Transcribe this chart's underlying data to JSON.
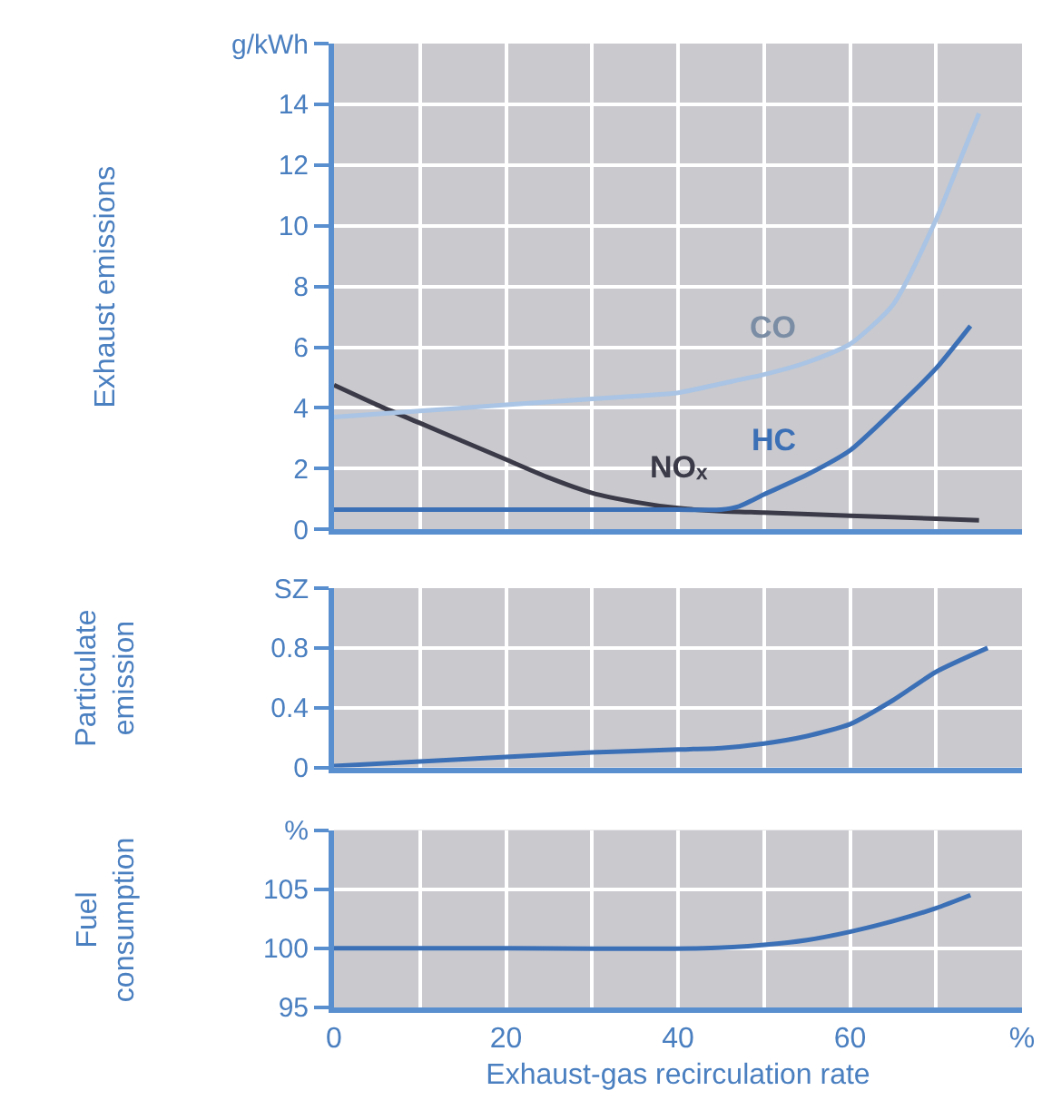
{
  "chart_data": [
    {
      "type": "line",
      "ylabel": "Exhaust emissions",
      "xlim": [
        0,
        80
      ],
      "ylim": [
        0,
        16
      ],
      "xticks": [
        0,
        {
          "value": 10,
          "label": null
        },
        20,
        {
          "value": 30,
          "label": null
        },
        40,
        {
          "value": 50,
          "label": null
        },
        60,
        {
          "value": 70,
          "label": null
        },
        {
          "value": 80,
          "label": null
        }
      ],
      "yticks": [
        0,
        2,
        4,
        6,
        8,
        10,
        12,
        14,
        {
          "value": 16,
          "label": "g/kWh"
        }
      ],
      "grid": true,
      "tick_labels": "y",
      "marker": "none",
      "line_style": "solid",
      "series": [
        {
          "name": "NOₓ",
          "color": "#3a3a48",
          "x": [
            0,
            5,
            10,
            15,
            20,
            25,
            30,
            35,
            40,
            45,
            50,
            60,
            70,
            75
          ],
          "values": [
            4.75,
            4.1,
            3.5,
            2.9,
            2.3,
            1.7,
            1.2,
            0.9,
            0.7,
            0.6,
            0.55,
            0.45,
            0.35,
            0.3
          ]
        },
        {
          "name": "CO",
          "color": "#a9c4e4",
          "x": [
            0,
            10,
            20,
            30,
            40,
            45,
            50,
            55,
            60,
            65,
            70,
            73,
            75
          ],
          "values": [
            3.7,
            3.9,
            4.1,
            4.3,
            4.5,
            4.8,
            5.1,
            5.5,
            6.1,
            7.4,
            10.2,
            12.3,
            13.7
          ]
        },
        {
          "name": "HC",
          "color": "#3b6fb6",
          "x": [
            0,
            20,
            40,
            45,
            47,
            50,
            55,
            60,
            65,
            70,
            74
          ],
          "values": [
            0.65,
            0.65,
            0.65,
            0.65,
            0.75,
            1.15,
            1.8,
            2.6,
            3.9,
            5.3,
            6.7
          ]
        }
      ]
    },
    {
      "type": "line",
      "ylabel": "Particulate\nemission",
      "xlim": [
        0,
        80
      ],
      "ylim": [
        0,
        1.2
      ],
      "xticks": [
        0,
        {
          "value": 10,
          "label": null
        },
        20,
        {
          "value": 30,
          "label": null
        },
        40,
        {
          "value": 50,
          "label": null
        },
        60,
        {
          "value": 70,
          "label": null
        },
        {
          "value": 80,
          "label": null
        }
      ],
      "yticks": [
        0,
        0.4,
        0.8,
        {
          "value": 1.2,
          "label": "SZ"
        }
      ],
      "grid": true,
      "tick_labels": "y",
      "marker": "none",
      "line_style": "solid",
      "series": [
        {
          "color": "#3b6fb6",
          "x": [
            0,
            10,
            20,
            30,
            40,
            45,
            50,
            55,
            60,
            65,
            70,
            76
          ],
          "values": [
            0.01,
            0.04,
            0.07,
            0.1,
            0.12,
            0.13,
            0.16,
            0.21,
            0.29,
            0.45,
            0.64,
            0.8
          ]
        }
      ]
    },
    {
      "type": "line",
      "ylabel": "Fuel\nconsumption",
      "xlabel": "Exhaust-gas recirculation rate",
      "xlim": [
        0,
        80
      ],
      "ylim": [
        95,
        110
      ],
      "xticks": [
        0,
        {
          "value": 10,
          "label": null
        },
        20,
        {
          "value": 30,
          "label": null
        },
        40,
        {
          "value": 50,
          "label": null
        },
        60,
        {
          "value": 70,
          "label": null
        },
        {
          "value": 80,
          "label": "%"
        }
      ],
      "yticks": [
        95,
        100,
        105,
        {
          "value": 110,
          "label": "%"
        }
      ],
      "grid": true,
      "marker": "none",
      "line_style": "solid",
      "series": [
        {
          "color": "#3b6fb6",
          "x": [
            0,
            20,
            43,
            50,
            55,
            60,
            65,
            70,
            74
          ],
          "values": [
            100,
            100,
            100,
            100.3,
            100.7,
            101.4,
            102.3,
            103.4,
            104.5
          ]
        }
      ]
    }
  ]
}
